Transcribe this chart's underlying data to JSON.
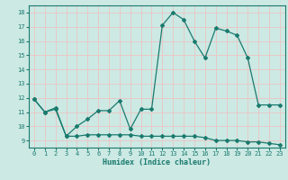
{
  "xlabel": "Humidex (Indice chaleur)",
  "xlim": [
    -0.5,
    23.5
  ],
  "ylim": [
    8.5,
    18.5
  ],
  "yticks": [
    9,
    10,
    11,
    12,
    13,
    14,
    15,
    16,
    17,
    18
  ],
  "xticks": [
    0,
    1,
    2,
    3,
    4,
    5,
    6,
    7,
    8,
    9,
    10,
    11,
    12,
    13,
    14,
    15,
    16,
    17,
    18,
    19,
    20,
    21,
    22,
    23
  ],
  "bg_color": "#cce9e4",
  "grid_color": "#e8c8c8",
  "line_color": "#1a7a6e",
  "line1_x": [
    0,
    1,
    2,
    3,
    4,
    5,
    6,
    7,
    8,
    9,
    10,
    11,
    12,
    13,
    14,
    15,
    16,
    17,
    18,
    19,
    20,
    21,
    22,
    23
  ],
  "line1_y": [
    11.9,
    11.0,
    11.3,
    9.3,
    10.0,
    10.5,
    11.1,
    11.1,
    11.8,
    9.8,
    11.2,
    11.2,
    17.1,
    18.0,
    17.5,
    16.0,
    14.8,
    16.9,
    16.7,
    16.4,
    14.8,
    11.5,
    11.5,
    11.5
  ],
  "line2_x": [
    0,
    1,
    2,
    3,
    4,
    5,
    6,
    7,
    8,
    9,
    10,
    11,
    12,
    13,
    14,
    15,
    16,
    17,
    18,
    19,
    20,
    21,
    22,
    23
  ],
  "line2_y": [
    11.9,
    11.0,
    11.2,
    9.3,
    9.3,
    9.4,
    9.4,
    9.4,
    9.4,
    9.4,
    9.3,
    9.3,
    9.3,
    9.3,
    9.3,
    9.3,
    9.2,
    9.0,
    9.0,
    9.0,
    8.9,
    8.9,
    8.8,
    8.7
  ],
  "xlabel_fontsize": 6.0,
  "tick_fontsize": 5.0
}
